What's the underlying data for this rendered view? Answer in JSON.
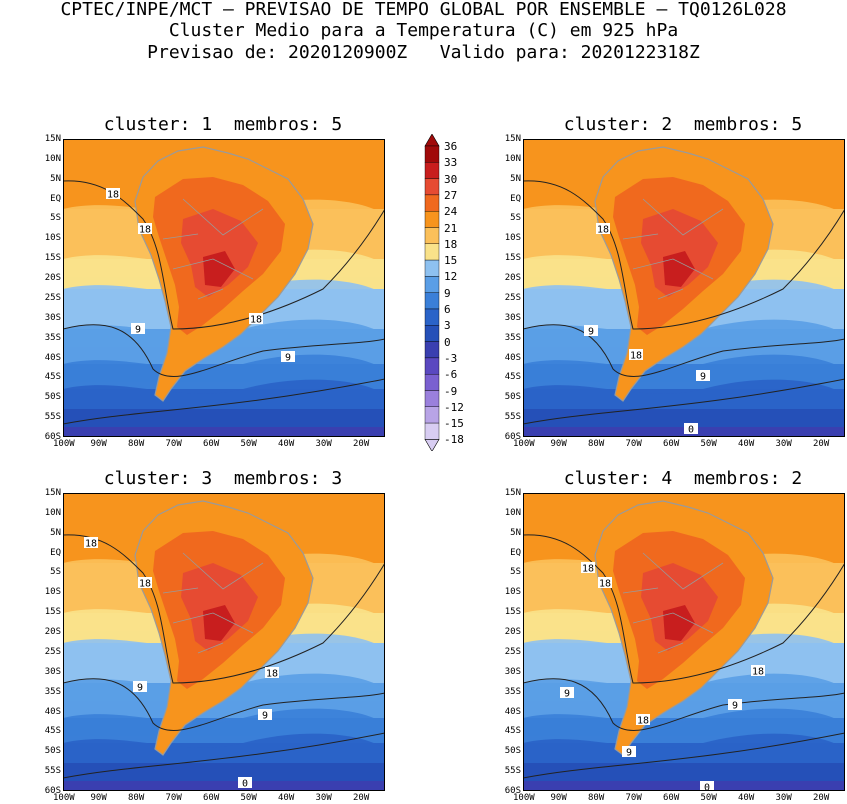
{
  "header": {
    "line1": "CPTEC/INPE/MCT – PREVISAO DE TEMPO GLOBAL POR ENSEMBLE – TQ0126L028",
    "line2": "Cluster Medio para a Temperatura (C) em 925 hPa",
    "line3": "Previsao de: 2020120900Z   Valido para: 2020122318Z"
  },
  "panels": [
    {
      "title": "cluster: 1  membros: 5",
      "contour_labels": [
        "18",
        "18",
        "18",
        "9",
        "9"
      ]
    },
    {
      "title": "cluster: 2  membros: 5",
      "contour_labels": [
        "18",
        "9",
        "18",
        "9",
        "0"
      ]
    },
    {
      "title": "cluster: 3  membros: 3",
      "contour_labels": [
        "18",
        "18",
        "9",
        "18",
        "9",
        "0"
      ]
    },
    {
      "title": "cluster: 4  membros: 2",
      "contour_labels": [
        "18",
        "18",
        "18",
        "9",
        "18",
        "9",
        "9",
        "0"
      ]
    }
  ],
  "lat_labels": [
    "15N",
    "10N",
    "5N",
    "EQ",
    "5S",
    "10S",
    "15S",
    "20S",
    "25S",
    "30S",
    "35S",
    "40S",
    "45S",
    "50S",
    "55S",
    "60S"
  ],
  "lon_labels": [
    "100W",
    "90W",
    "80W",
    "70W",
    "60W",
    "50W",
    "40W",
    "30W",
    "20W"
  ],
  "colorbar": {
    "labels": [
      "36",
      "33",
      "30",
      "27",
      "24",
      "21",
      "18",
      "15",
      "12",
      "9",
      "6",
      "3",
      "0",
      "-3",
      "-6",
      "-9",
      "-12",
      "-15",
      "-18"
    ],
    "colors": [
      "#a00a0a",
      "#c81e1e",
      "#e64b32",
      "#f0691e",
      "#f7941d",
      "#fbc05a",
      "#f9e28a",
      "#8ec1f0",
      "#5a9ee6",
      "#3a7fd8",
      "#2a63c8",
      "#2550b8",
      "#3a3fb0",
      "#5a48c0",
      "#7a60d0",
      "#9a80dc",
      "#b8a4e6",
      "#d8cdf2"
    ]
  }
}
